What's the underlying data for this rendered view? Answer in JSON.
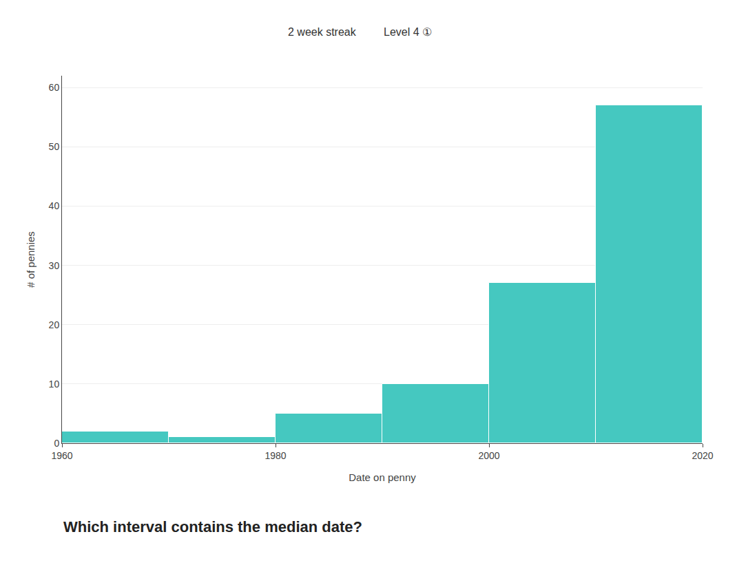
{
  "chart_data": {
    "type": "histogram",
    "bins": [
      1960,
      1970,
      1980,
      1990,
      2000,
      2010,
      2020
    ],
    "values": [
      2,
      1,
      5,
      10,
      27,
      57
    ],
    "color": "#45C8C0",
    "xlabel": "Date on penny",
    "ylabel": "# of pennies",
    "xlim": [
      1960,
      2020
    ],
    "xticks": [
      1960,
      1980,
      2000,
      2020
    ],
    "ylim": [
      0,
      62
    ],
    "yticks": [
      0,
      10,
      20,
      30,
      40,
      50,
      60
    ],
    "grid": true,
    "annotations": [
      "2 week streak",
      "Level 4 ①",
      "Which interval contains the median date?"
    ]
  }
}
